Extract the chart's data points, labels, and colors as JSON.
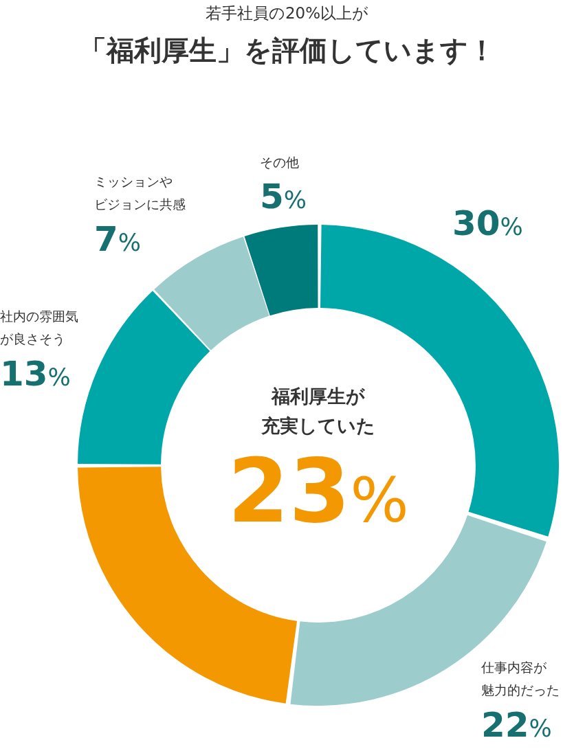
{
  "chart_data": {
    "type": "donut",
    "title": "若手社員の20%以上が",
    "subtitle": "「福利厚生」を評価しています！",
    "categories": [
      null,
      "仕事内容が魅力的だった",
      "福利厚生が充実していた",
      "社内の雰囲気が良さそう",
      "ミッションやビジョンに共感",
      "その他"
    ],
    "values": [
      30,
      22,
      23,
      13,
      7,
      5
    ],
    "colors": [
      "#00a7a8",
      "#9ccccc",
      "#f39800",
      "#00a7a8",
      "#9ccccc",
      "#007b7b"
    ],
    "value_labels": [
      "30%",
      "22%",
      "23%",
      "13%",
      "7%",
      "5%"
    ],
    "legend": false
  }
}
